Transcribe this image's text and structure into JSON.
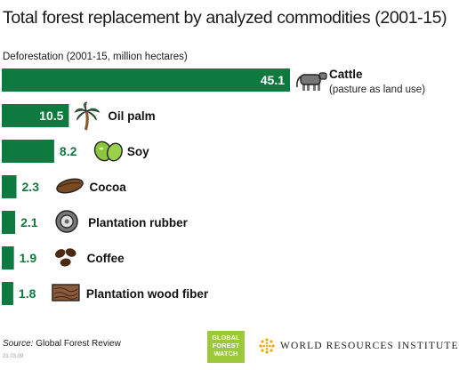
{
  "title": "Total forest replacement by analyzed commodities (2001-15)",
  "subtitle": "Deforestation (2001-15, million hectares)",
  "colors": {
    "bar": "#0f7a40",
    "bar_label_outside": "#0f7a40",
    "bar_label_inside": "#ffffff"
  },
  "chart_data": {
    "type": "bar",
    "orientation": "horizontal",
    "ylabel": "Deforestation (2001-15, million hectares)",
    "categories": [
      "Cattle",
      "Oil palm",
      "Soy",
      "Cocoa",
      "Plantation rubber",
      "Coffee",
      "Plantation wood fiber"
    ],
    "category_notes": [
      "(pasture as land use)",
      "",
      "",
      "",
      "",
      "",
      ""
    ],
    "values": [
      45.1,
      10.5,
      8.2,
      2.3,
      2.1,
      1.9,
      1.8
    ],
    "icons": [
      "cow-icon",
      "palm-tree-icon",
      "soybean-icon",
      "cocoa-pod-icon",
      "rubber-tire-icon",
      "coffee-beans-icon",
      "wood-grain-icon"
    ],
    "xlim": [
      0,
      45.1
    ],
    "grid": false,
    "legend": "none"
  },
  "footer": {
    "source_label": "Source:",
    "source_text": "Global Forest Review",
    "code": "21.03.09",
    "gfw_logo_lines": [
      "GLOBAL",
      "FOREST",
      "WATCH"
    ],
    "wri_name": "WORLD RESOURCES INSTITUTE"
  }
}
